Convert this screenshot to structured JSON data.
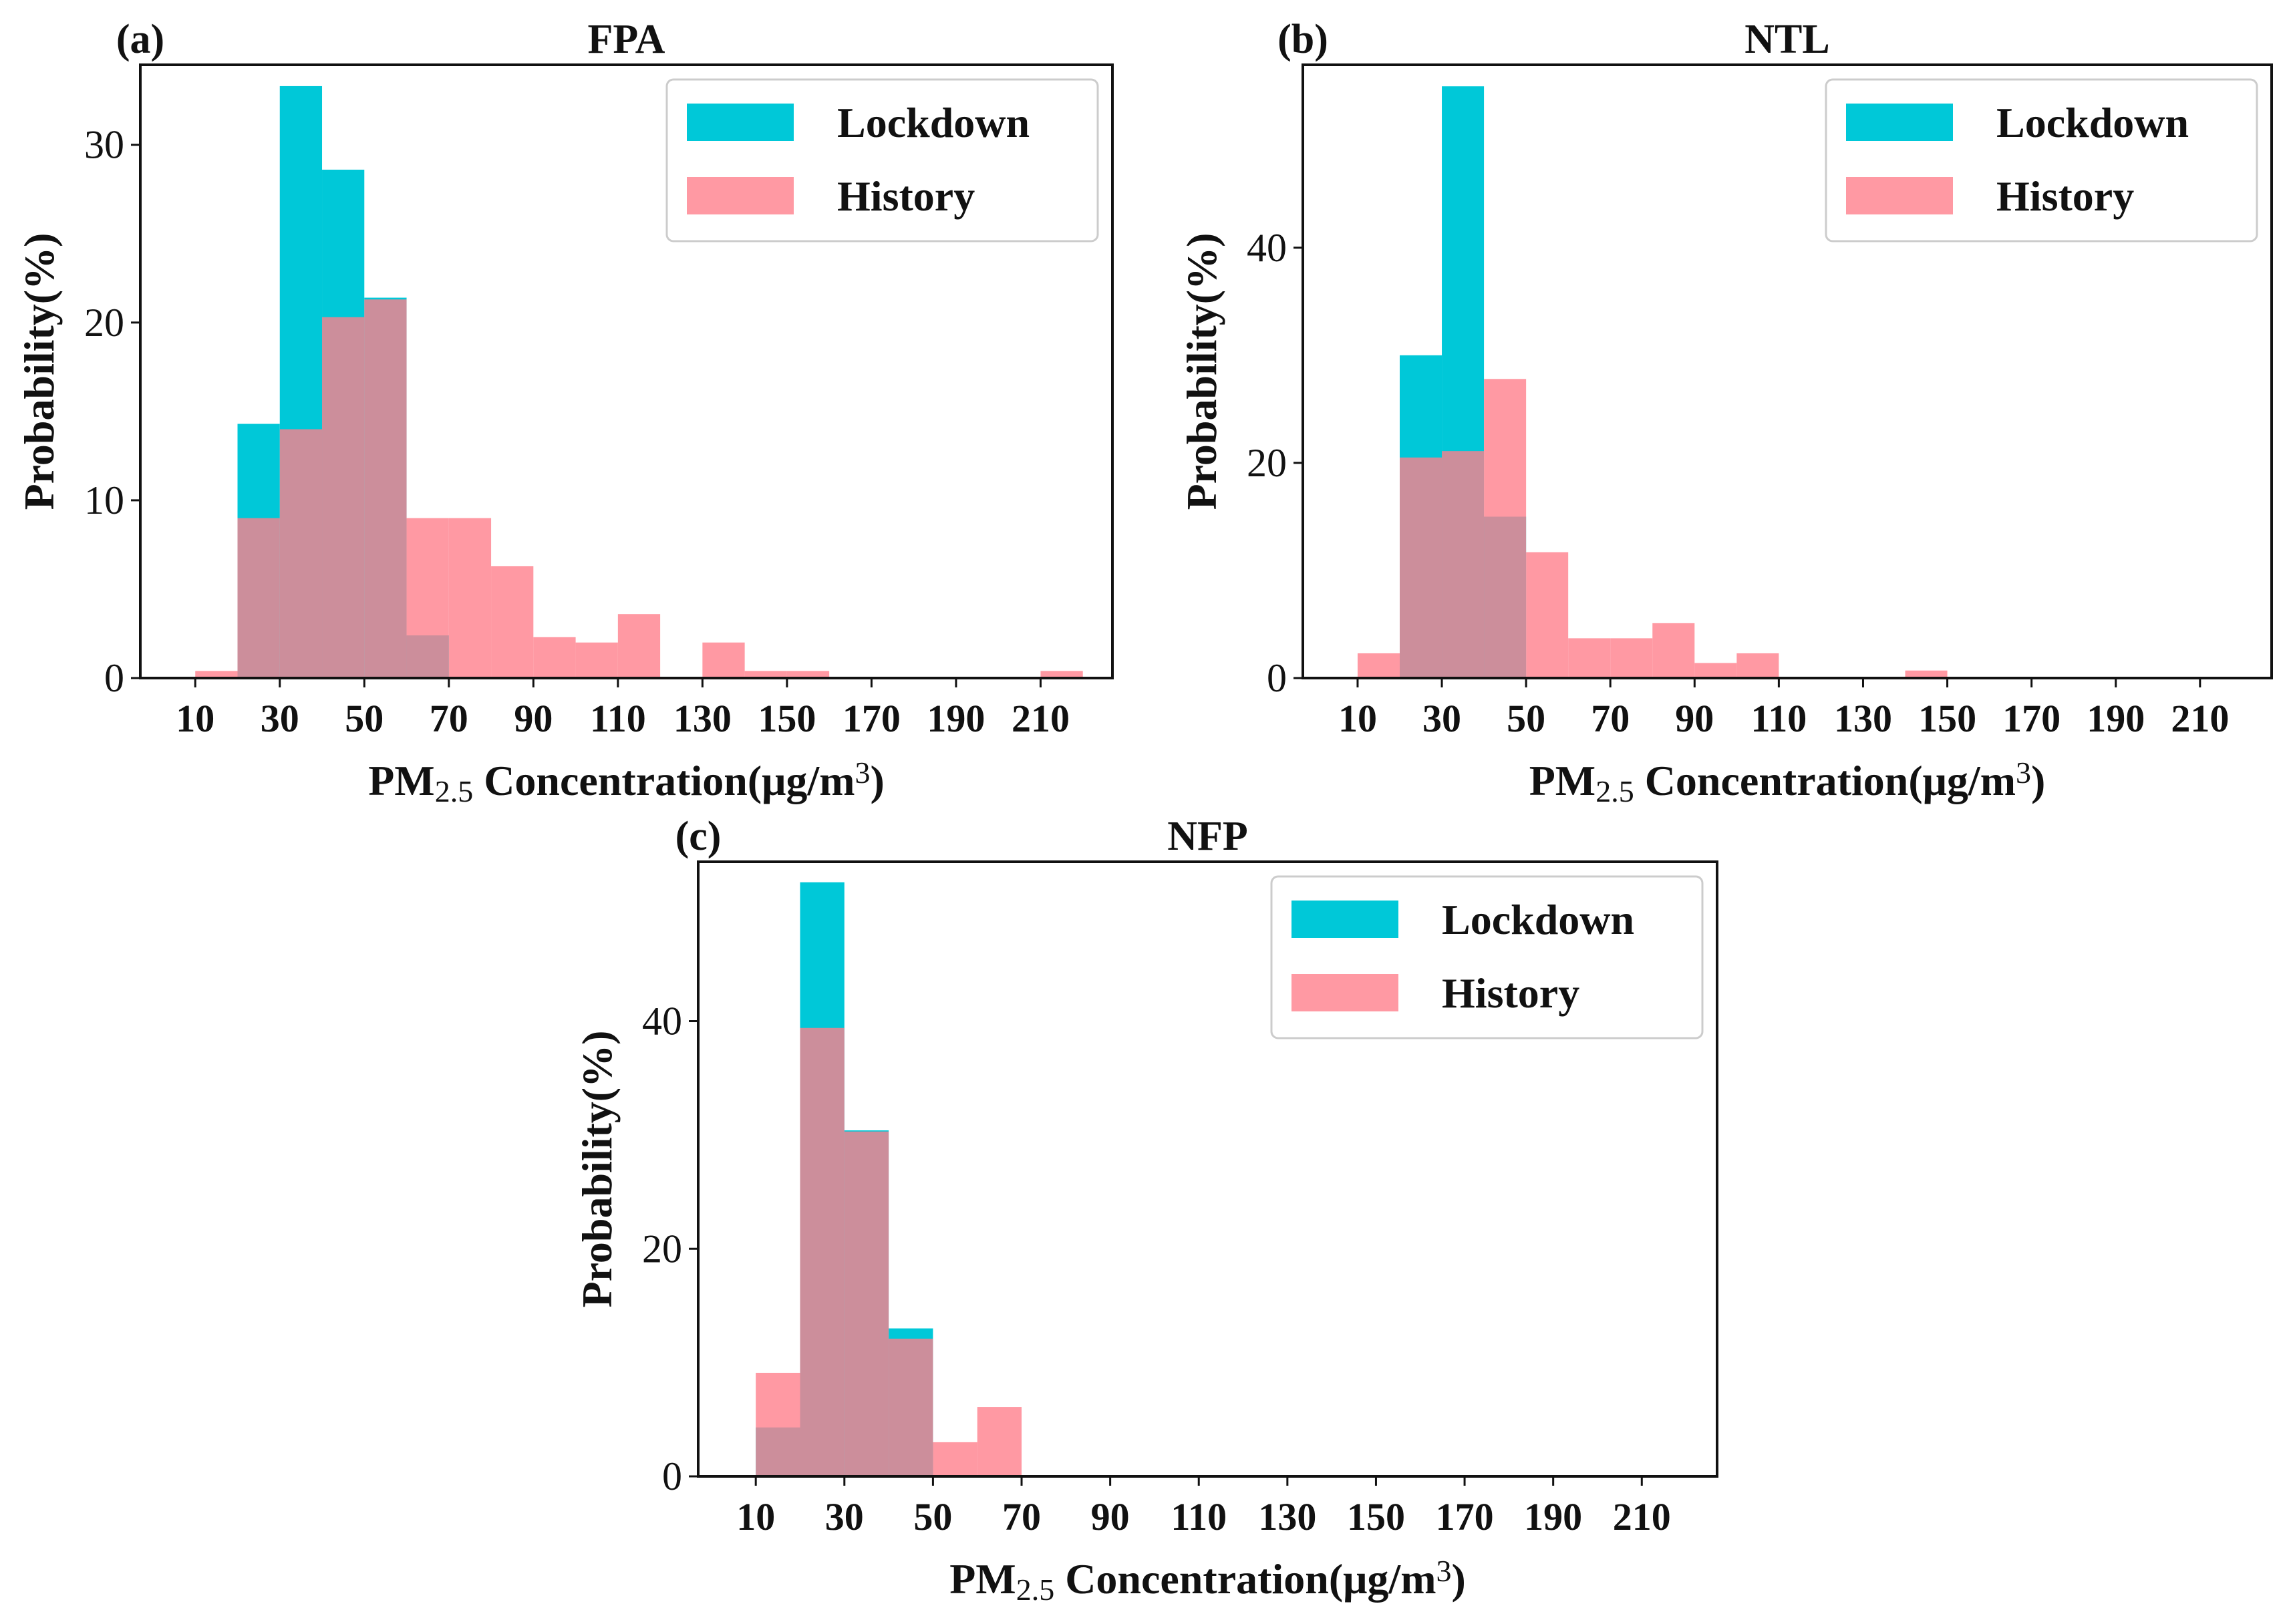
{
  "figure": {
    "colors": {
      "lockdown": "#00c8d8",
      "history": "#ff7f8c",
      "overlap": "#d86a7e",
      "axis": "#111111",
      "legend_border": "#cccccc"
    }
  },
  "chart_data": [
    {
      "type": "bar",
      "panel_label": "(a)",
      "title": "FPA",
      "xlabel": {
        "prefix": "PM",
        "sub": "2.5",
        "middle": " Concentration(μg/m",
        "sup": "3",
        "suffix": ")"
      },
      "ylabel": "Probability(%)",
      "xlim": [
        -3,
        227
      ],
      "ylim": [
        0,
        34.5
      ],
      "xticks": [
        10,
        30,
        50,
        70,
        90,
        110,
        130,
        150,
        170,
        190,
        210
      ],
      "xtick_labels": [
        "10",
        "30",
        "50",
        "70",
        "90",
        "110",
        "130",
        "150",
        "170",
        "190",
        "210"
      ],
      "yticks": [
        0,
        10,
        20,
        30
      ],
      "ytick_labels": [
        "0",
        "10",
        "20",
        "30"
      ],
      "legend": {
        "position": "top-right",
        "entries": [
          "Lockdown",
          "History"
        ]
      },
      "bin_width": 10,
      "series": [
        {
          "name": "Lockdown",
          "bin_starts": [
            20,
            30,
            40,
            50,
            60
          ],
          "values": [
            14.3,
            33.3,
            28.6,
            21.4,
            2.4
          ]
        },
        {
          "name": "History",
          "bin_starts": [
            10,
            20,
            30,
            40,
            50,
            60,
            70,
            80,
            90,
            100,
            110,
            130,
            140,
            150,
            210
          ],
          "values": [
            0.4,
            9.0,
            14.0,
            20.3,
            21.3,
            9.0,
            9.0,
            6.3,
            2.3,
            2.0,
            3.6,
            2.0,
            0.4,
            0.4,
            0.4
          ]
        }
      ]
    },
    {
      "type": "bar",
      "panel_label": "(b)",
      "title": "NTL",
      "xlabel": {
        "prefix": "PM",
        "sub": "2.5",
        "middle": " Concentration(μg/m",
        "sup": "3",
        "suffix": ")"
      },
      "ylabel": "Probability(%)",
      "xlim": [
        -3,
        227
      ],
      "ylim": [
        0,
        57
      ],
      "xticks": [
        10,
        30,
        50,
        70,
        90,
        110,
        130,
        150,
        170,
        190,
        210
      ],
      "xtick_labels": [
        "10",
        "30",
        "50",
        "70",
        "90",
        "110",
        "130",
        "150",
        "170",
        "190",
        "210"
      ],
      "yticks": [
        0,
        20,
        40
      ],
      "ytick_labels": [
        "0",
        "20",
        "40"
      ],
      "legend": {
        "position": "top-right",
        "entries": [
          "Lockdown",
          "History"
        ]
      },
      "bin_width": 10,
      "series": [
        {
          "name": "Lockdown",
          "bin_starts": [
            20,
            30,
            40
          ],
          "values": [
            30.0,
            55.0,
            15.0
          ]
        },
        {
          "name": "History",
          "bin_starts": [
            10,
            20,
            30,
            40,
            50,
            60,
            70,
            80,
            90,
            100,
            140
          ],
          "values": [
            2.3,
            20.5,
            21.1,
            27.8,
            11.7,
            3.7,
            3.7,
            5.1,
            1.4,
            2.3,
            0.7
          ]
        }
      ]
    },
    {
      "type": "bar",
      "panel_label": "(c)",
      "title": "NFP",
      "xlabel": {
        "prefix": "PM",
        "sub": "2.5",
        "middle": " Concentration(μg/m",
        "sup": "3",
        "suffix": ")"
      },
      "ylabel": "Probability(%)",
      "xlim": [
        -3,
        227
      ],
      "ylim": [
        0,
        54
      ],
      "xticks": [
        10,
        30,
        50,
        70,
        90,
        110,
        130,
        150,
        170,
        190,
        210
      ],
      "xtick_labels": [
        "10",
        "30",
        "50",
        "70",
        "90",
        "110",
        "130",
        "150",
        "170",
        "190",
        "210"
      ],
      "yticks": [
        0,
        20,
        40
      ],
      "ytick_labels": [
        "0",
        "20",
        "40"
      ],
      "legend": {
        "position": "top-right",
        "entries": [
          "Lockdown",
          "History"
        ]
      },
      "bin_width": 10,
      "series": [
        {
          "name": "Lockdown",
          "bin_starts": [
            10,
            20,
            30,
            40
          ],
          "values": [
            4.3,
            52.2,
            30.4,
            13.0
          ]
        },
        {
          "name": "History",
          "bin_starts": [
            10,
            20,
            30,
            40,
            50,
            60
          ],
          "values": [
            9.1,
            39.4,
            30.3,
            12.1,
            3.0,
            6.1
          ]
        }
      ]
    }
  ]
}
